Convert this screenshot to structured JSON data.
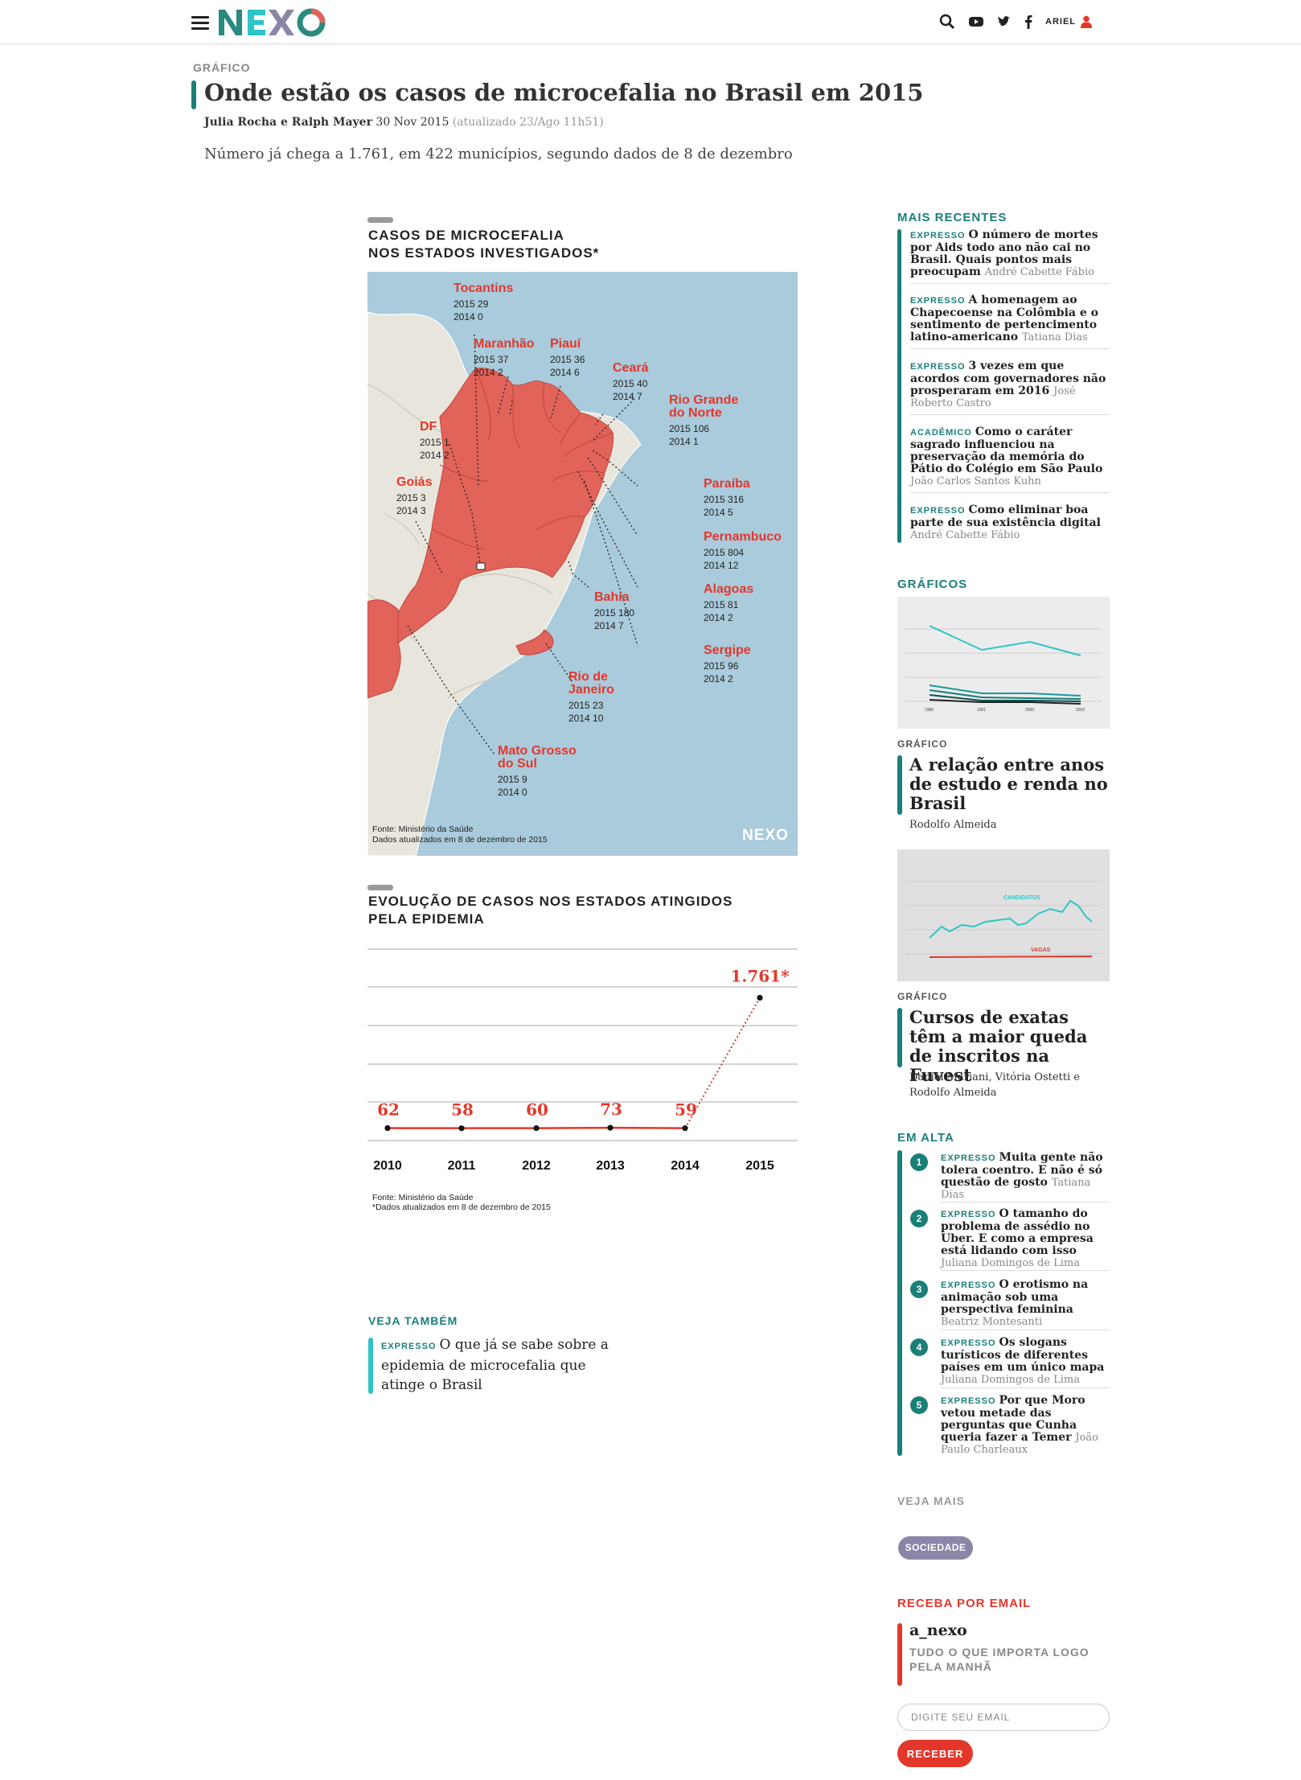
{
  "header": {
    "user_name": "ARIEL",
    "icons": [
      "menu-icon",
      "search-icon",
      "youtube-icon",
      "twitter-icon",
      "facebook-icon",
      "user-icon"
    ]
  },
  "article": {
    "kicker": "GRÁFICO",
    "title": "Onde estão os casos de microcefalia no Brasil em 2015",
    "authors": "Julia Rocha e Ralph Mayer",
    "date": "30 Nov 2015",
    "updated": "(atualizado 23/Ago 11h51)",
    "lede": "Número já chega a 1.761, em 422 municípios, segundo dados de 8 de dezembro"
  },
  "map_chart": {
    "heading_line1": "CASOS DE MICROCEFALIA",
    "heading_line2": "NOS ESTADOS INVESTIGADOS*",
    "source_line1": "Fonte: Ministério da Saúde",
    "source_line2": "Dados atualizados em 8 de dezembro de 2015",
    "watermark": "NEXO",
    "states": [
      {
        "name": "Tocantins",
        "l2015": "2015 29",
        "l2014": "2014 0"
      },
      {
        "name": "Maranhão",
        "l2015": "2015 37",
        "l2014": "2014 2"
      },
      {
        "name": "Piauí",
        "l2015": "2015 36",
        "l2014": "2014 6"
      },
      {
        "name": "Ceará",
        "l2015": "2015 40",
        "l2014": "2014 7"
      },
      {
        "name_l1": "Rio Grande",
        "name_l2": "do Norte",
        "l2015": "2015 106",
        "l2014": "2014 1"
      },
      {
        "name": "DF",
        "l2015": "2015 1",
        "l2014": "2014 2"
      },
      {
        "name": "Goiás",
        "l2015": "2015 3",
        "l2014": "2014 3"
      },
      {
        "name": "Paraíba",
        "l2015": "2015 316",
        "l2014": "2014 5"
      },
      {
        "name": "Pernambuco",
        "l2015": "2015 804",
        "l2014": "2014 12"
      },
      {
        "name": "Bahia",
        "l2015": "2015 180",
        "l2014": "2014 7"
      },
      {
        "name": "Alagoas",
        "l2015": "2015 81",
        "l2014": "2014 2"
      },
      {
        "name": "Sergipe",
        "l2015": "2015 96",
        "l2014": "2014 2"
      },
      {
        "name_l1": "Rio de",
        "name_l2": "Janeiro",
        "l2015": "2015 23",
        "l2014": "2014 10"
      },
      {
        "name_l1": "Mato Grosso",
        "name_l2": "do Sul",
        "l2015": "2015 9",
        "l2014": "2014 0"
      }
    ]
  },
  "line_chart": {
    "heading_line1": "EVOLUÇÃO DE CASOS NOS ESTADOS ATINGIDOS",
    "heading_line2": "PELA EPIDEMIA",
    "source_line1": "Fonte: Ministério da Saúde",
    "source_line2": "*Dados atualizados em 8 de dezembro de 2015"
  },
  "chart_data": {
    "type": "line",
    "x": [
      "2010",
      "2011",
      "2012",
      "2013",
      "2014",
      "2015"
    ],
    "values": [
      62,
      58,
      60,
      73,
      59,
      1761
    ],
    "labels": [
      "62",
      "58",
      "60",
      "73",
      "59",
      "1.761*"
    ],
    "title": "EVOLUÇÃO DE CASOS NOS ESTADOS ATINGIDOS PELA EPIDEMIA",
    "ylim": [
      0,
      2000
    ],
    "grid": true,
    "colors": {
      "line": "#e4372b"
    }
  },
  "related": {
    "label": "VEJA TAMBÉM",
    "tag": "EXPRESSO",
    "title": "O que já se sabe sobre a epidemia de microcefalia que atinge o Brasil"
  },
  "sidebar": {
    "recent_heading": "MAIS RECENTES",
    "recent": [
      {
        "tag": "EXPRESSO",
        "title": "O número de mortes por Aids todo ano não cai no Brasil. Quais pontos mais preocupam",
        "author": "André Cabette Fábio"
      },
      {
        "tag": "EXPRESSO",
        "title": "A homenagem ao Chapecoense na Colômbia e o sentimento de pertencimento latino-americano",
        "author": "Tatiana Dias"
      },
      {
        "tag": "EXPRESSO",
        "title": "3 vezes em que acordos com governadores não prosperaram em 2016",
        "author": "José Roberto Castro"
      },
      {
        "tag": "ACADÊMICO",
        "title": "Como o caráter sagrado influenciou na preservação da memória do Pátio do Colégio em São Paulo",
        "author": "João Carlos Santos Kuhn"
      },
      {
        "tag": "EXPRESSO",
        "title": "Como eliminar boa parte de sua existência digital",
        "author": "André Cabette Fábio"
      }
    ],
    "graficos_heading": "GRÁFICOS",
    "graficos": [
      {
        "kicker": "GRÁFICO",
        "title": "A relação entre anos de estudo e renda no Brasil",
        "author": "Rodolfo Almeida",
        "thumb_ticks": [
          "1980",
          "1991",
          "2000",
          "2010"
        ]
      },
      {
        "kicker": "GRÁFICO",
        "title": "Cursos de exatas têm a maior queda de inscritos na Fuvest",
        "author": "Daniel Mariani, Vitória Ostetti e Rodolfo Almeida",
        "thumb_labels": [
          "CANDIDATOS",
          "VAGAS"
        ]
      }
    ],
    "alta_heading": "EM ALTA",
    "alta": [
      {
        "num": "1",
        "tag": "EXPRESSO",
        "title": "Muita gente não tolera coentro. E não é só questão de gosto",
        "author": "Tatiana Dias"
      },
      {
        "num": "2",
        "tag": "EXPRESSO",
        "title": "O tamanho do problema de assédio no Uber. E como a empresa está lidando com isso",
        "author": "Juliana Domingos de Lima"
      },
      {
        "num": "3",
        "tag": "EXPRESSO",
        "title": "O erotismo na animação sob uma perspectiva feminina",
        "author": "Beatriz Montesanti"
      },
      {
        "num": "4",
        "tag": "EXPRESSO",
        "title": "Os slogans turísticos de diferentes países em um único mapa",
        "author": "Juliana Domingos de Lima"
      },
      {
        "num": "5",
        "tag": "EXPRESSO",
        "title": "Por que Moro vetou metade das perguntas que Cunha queria fazer a Temer",
        "author": "João Paulo Charleaux"
      }
    ],
    "veja_mais": "VEJA MAIS",
    "topic": "SOCIEDADE",
    "email_heading": "RECEBA POR EMAIL",
    "newsletter_name": "a_nexo",
    "newsletter_desc": "TUDO O QUE IMPORTA LOGO PELA MANHÃ",
    "email_placeholder": "DIGITE SEU EMAIL",
    "submit_label": "RECEBER"
  },
  "colors": {
    "accent_teal": "#1a7f78",
    "accent_red": "#e4372b",
    "map_water": "#a9cbdc",
    "map_land": "#e8e6dc",
    "map_highlight": "#e1635a"
  }
}
